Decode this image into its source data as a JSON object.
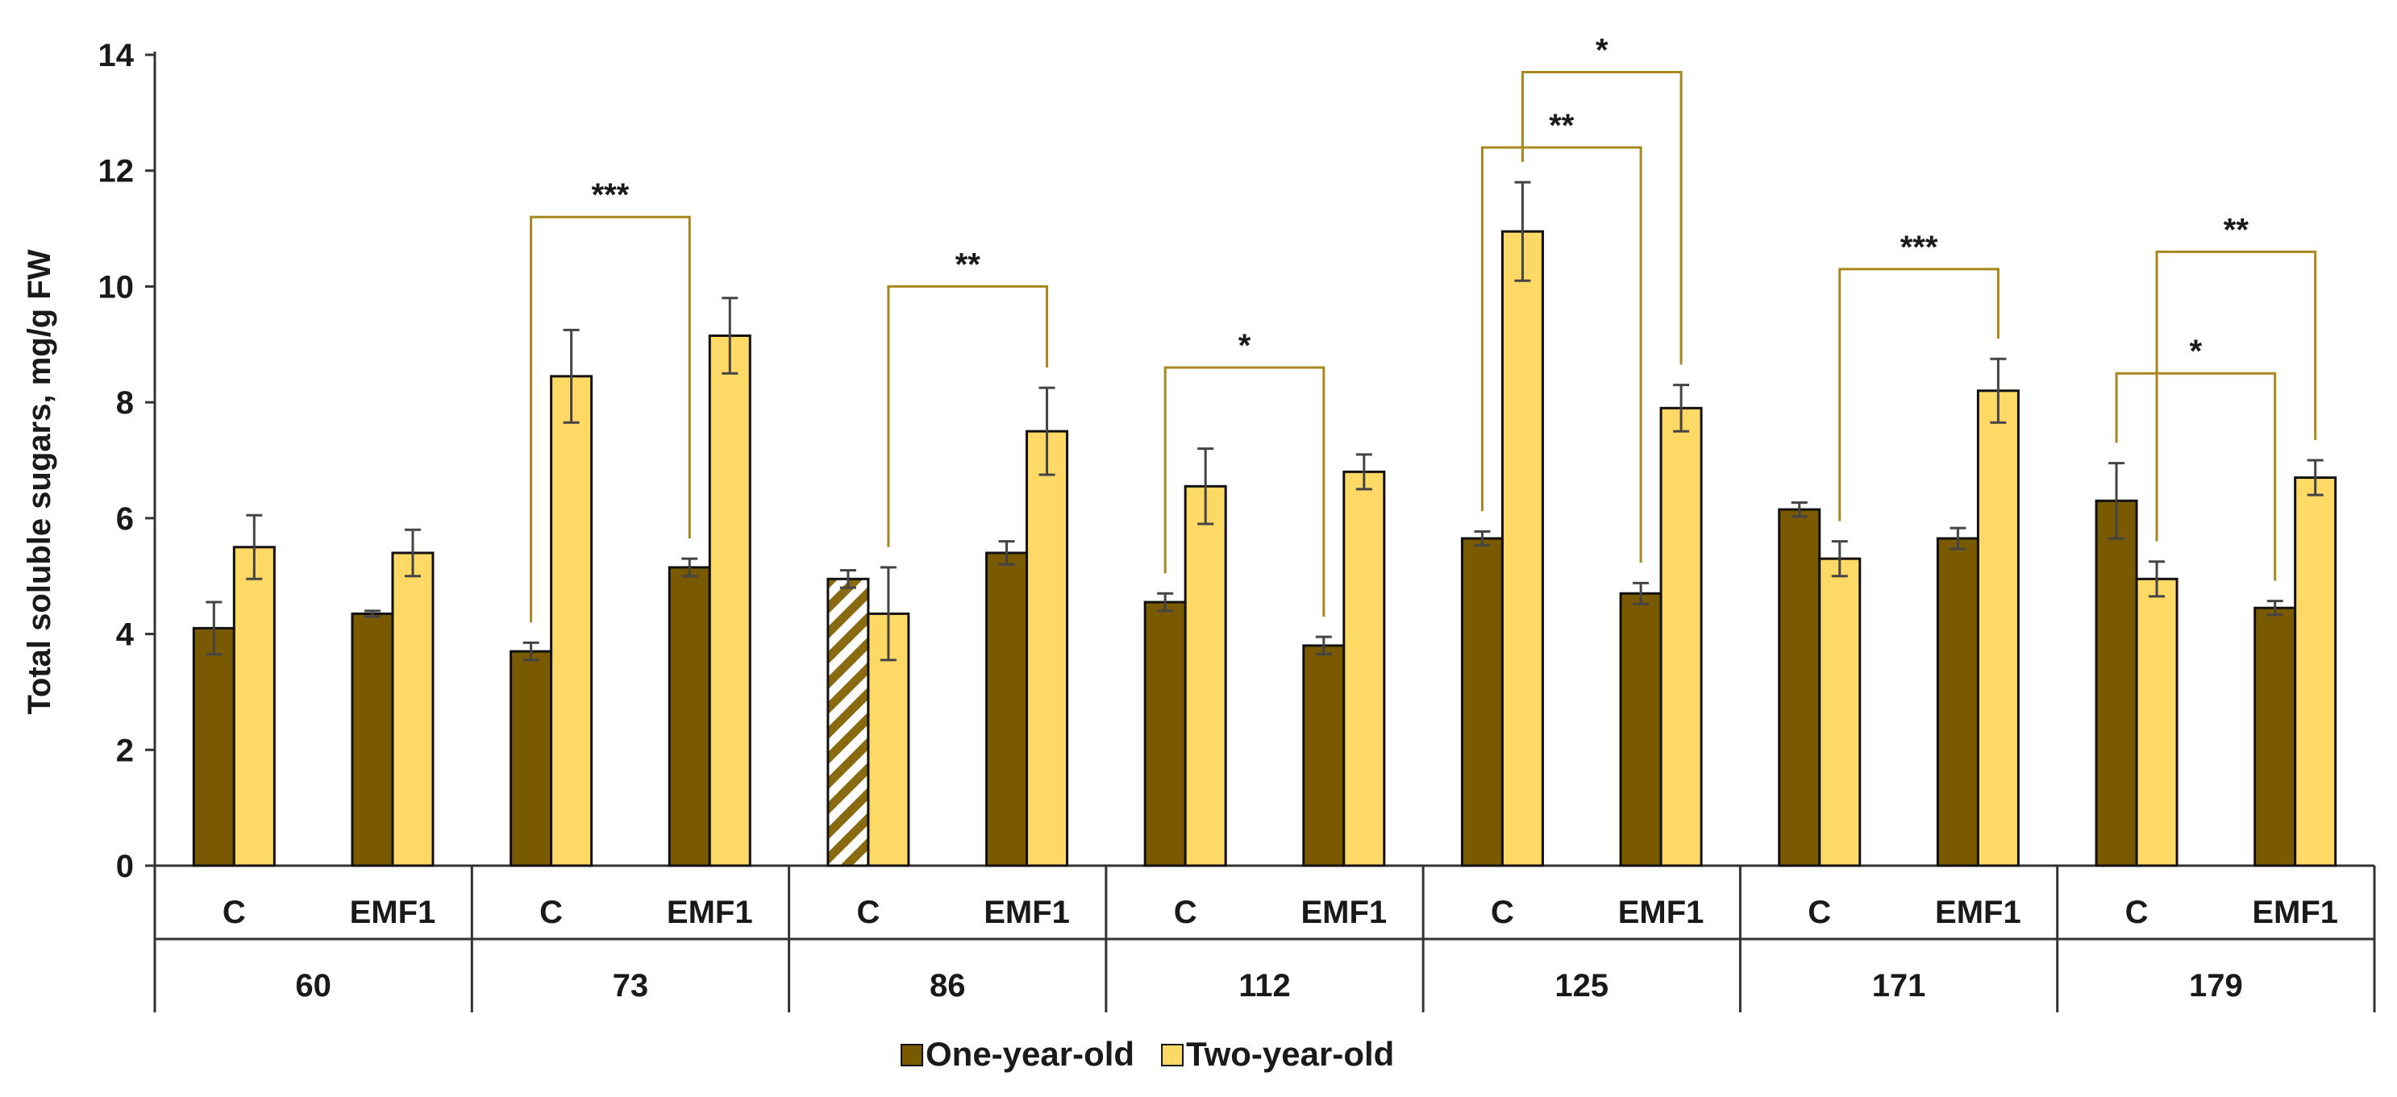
{
  "chart_data": {
    "type": "bar",
    "title": "",
    "ylabel": "Total soluble sugars, mg/g FW",
    "xlabel": "",
    "ylim": [
      0,
      14
    ],
    "yticks": [
      0,
      2,
      4,
      6,
      8,
      10,
      12,
      14
    ],
    "groups": [
      "60",
      "73",
      "86",
      "112",
      "125",
      "171",
      "179"
    ],
    "treatments": [
      "C",
      "EMF1"
    ],
    "series": [
      {
        "name": "One-year-old",
        "color": "#7a5a00",
        "values": [
          [
            4.1,
            4.35
          ],
          [
            3.7,
            5.15
          ],
          [
            4.95,
            5.4
          ],
          [
            4.55,
            3.8
          ],
          [
            5.65,
            4.7
          ],
          [
            6.15,
            5.65
          ],
          [
            6.3,
            4.45
          ]
        ],
        "errors": [
          [
            0.45,
            0.05
          ],
          [
            0.15,
            0.15
          ],
          [
            0.15,
            0.2
          ],
          [
            0.15,
            0.15
          ],
          [
            0.12,
            0.18
          ],
          [
            0.12,
            0.18
          ],
          [
            0.65,
            0.12
          ]
        ]
      },
      {
        "name": "Two-year-old",
        "color": "#ffd966",
        "values": [
          [
            5.5,
            5.4
          ],
          [
            8.45,
            9.15
          ],
          [
            4.35,
            7.5
          ],
          [
            6.55,
            6.8
          ],
          [
            10.95,
            7.9
          ],
          [
            5.3,
            8.2
          ],
          [
            4.95,
            6.7
          ]
        ],
        "errors": [
          [
            0.55,
            0.4
          ],
          [
            0.8,
            0.65
          ],
          [
            0.8,
            0.75
          ],
          [
            0.65,
            0.3
          ],
          [
            0.85,
            0.4
          ],
          [
            0.3,
            0.55
          ],
          [
            0.3,
            0.3
          ]
        ]
      }
    ],
    "patterned_bars": [
      {
        "group": "86",
        "treatment": "C",
        "series": "One-year-old",
        "pattern": "hatched"
      }
    ],
    "annotations": [
      {
        "label": "***",
        "group": "73",
        "from": "C",
        "to": "EMF1",
        "series": "One-year-old",
        "level": 11.2
      },
      {
        "label": "**",
        "group": "86",
        "from": "C",
        "to": "EMF1",
        "series": "Two-year-old",
        "level": 10.0
      },
      {
        "label": "*",
        "group": "112",
        "from": "C",
        "to": "EMF1",
        "series": "One-year-old",
        "level": 8.6
      },
      {
        "label": "**",
        "group": "125",
        "from": "C",
        "to": "EMF1",
        "series": "One-year-old",
        "level": 12.4
      },
      {
        "label": "*",
        "group": "125",
        "from": "C",
        "to": "EMF1",
        "series": "Two-year-old",
        "level": 13.7
      },
      {
        "label": "***",
        "group": "171",
        "from": "C",
        "to": "EMF1",
        "series": "Two-year-old",
        "level": 10.3
      },
      {
        "label": "*",
        "group": "179",
        "from": "C",
        "to": "EMF1",
        "series": "One-year-old",
        "level": 8.5
      },
      {
        "label": "**",
        "group": "179",
        "from": "C",
        "to": "EMF1",
        "series": "Two-year-old",
        "level": 10.6
      }
    ],
    "bracket_color": "#a8881e",
    "legend": {
      "position": "bottom",
      "entries": [
        "One-year-old",
        "Two-year-old"
      ]
    }
  }
}
